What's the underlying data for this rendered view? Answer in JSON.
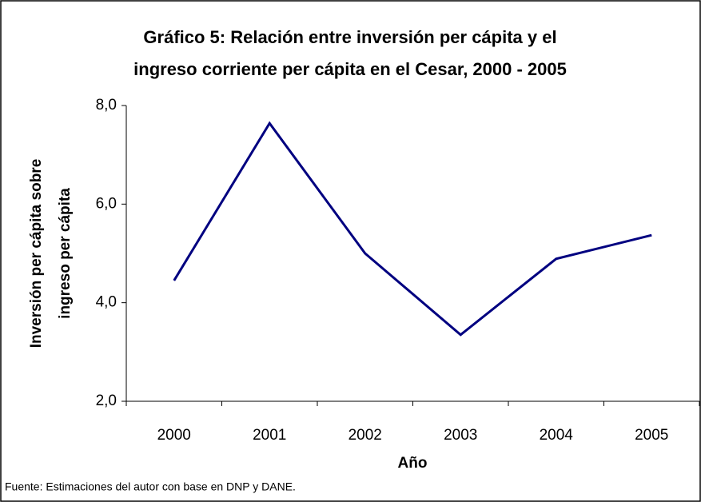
{
  "chart_data": {
    "type": "line",
    "title": [
      "Gráfico 5: Relación entre inversión per cápita y el",
      "ingreso corriente per cápita en el Cesar, 2000 - 2005"
    ],
    "x_label": "Año",
    "y_label": [
      "Inversión per cápita sobre",
      "ingreso per cápita"
    ],
    "note": "Fuente: Estimaciones del autor con base en DNP y DANE.",
    "categories": [
      "2000",
      "2001",
      "2002",
      "2003",
      "2004",
      "2005"
    ],
    "series": [
      {
        "name": "Inversión per cápita sobre ingreso per cápita",
        "color": "#000080",
        "values": [
          4.45,
          7.64,
          5.0,
          3.35,
          4.89,
          5.37
        ]
      }
    ],
    "ylim": [
      2,
      8
    ],
    "yticks": [
      {
        "value": 2,
        "label": "2,0"
      },
      {
        "value": 4,
        "label": "4,0"
      },
      {
        "value": 6,
        "label": "6,0"
      },
      {
        "value": 8,
        "label": "8,0"
      }
    ],
    "grid": false,
    "legend": false
  }
}
